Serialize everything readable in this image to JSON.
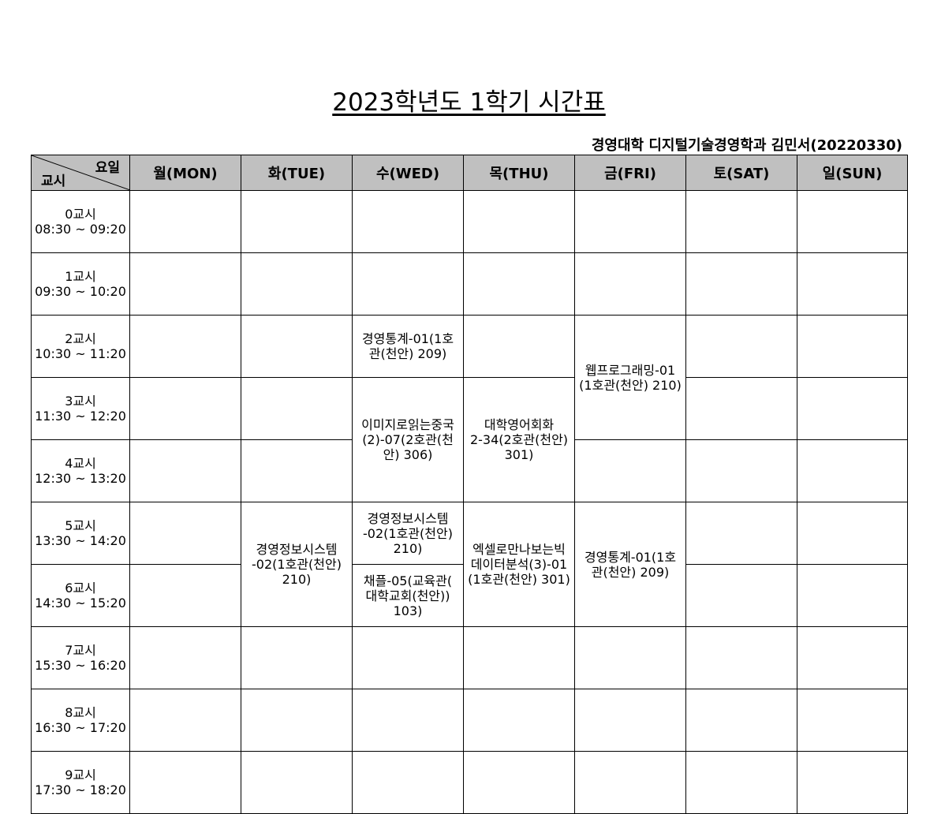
{
  "title": "2023학년도 1학기 시간표",
  "subtitle": "경영대학 디지털기술경영학과  김민서(20220330)",
  "corner": {
    "day_label": "요일",
    "period_label": "교시"
  },
  "days": [
    "월(MON)",
    "화(TUE)",
    "수(WED)",
    "목(THU)",
    "금(FRI)",
    "토(SAT)",
    "일(SUN)"
  ],
  "periods": [
    {
      "name": "0교시",
      "time": "08:30 ~ 09:20"
    },
    {
      "name": "1교시",
      "time": "09:30 ~ 10:20"
    },
    {
      "name": "2교시",
      "time": "10:30 ~ 11:20"
    },
    {
      "name": "3교시",
      "time": "11:30 ~ 12:20"
    },
    {
      "name": "4교시",
      "time": "12:30 ~ 13:20"
    },
    {
      "name": "5교시",
      "time": "13:30 ~ 14:20"
    },
    {
      "name": "6교시",
      "time": "14:30 ~ 15:20"
    },
    {
      "name": "7교시",
      "time": "15:30 ~ 16:20"
    },
    {
      "name": "8교시",
      "time": "16:30 ~ 17:20"
    },
    {
      "name": "9교시",
      "time": "17:30 ~ 18:20"
    }
  ],
  "classes": {
    "wed_p2": [
      "경영통계-01(1호",
      "관(천안) 209)"
    ],
    "fri_p2": [
      "웹프로그래밍-01",
      "(1호관(천안) 210)"
    ],
    "wed_p3": [
      "이미지로읽는중국",
      "(2)-07(2호관(천",
      "안) 306)"
    ],
    "thu_p3": [
      "대학영어회화",
      "2-34(2호관(천안)",
      "301)"
    ],
    "tue_p5": [
      "경영정보시스템",
      "-02(1호관(천안)",
      "210)"
    ],
    "wed_p5": [
      "경영정보시스템",
      "-02(1호관(천안)",
      "210)"
    ],
    "thu_p5": [
      "엑셀로만나보는빅",
      "데이터분석(3)-01",
      "(1호관(천안) 301)"
    ],
    "fri_p5": [
      "경영통계-01(1호",
      "관(천안) 209)"
    ],
    "wed_p6": [
      "채플-05(교육관(",
      "대학교회(천안))",
      "103)"
    ]
  }
}
